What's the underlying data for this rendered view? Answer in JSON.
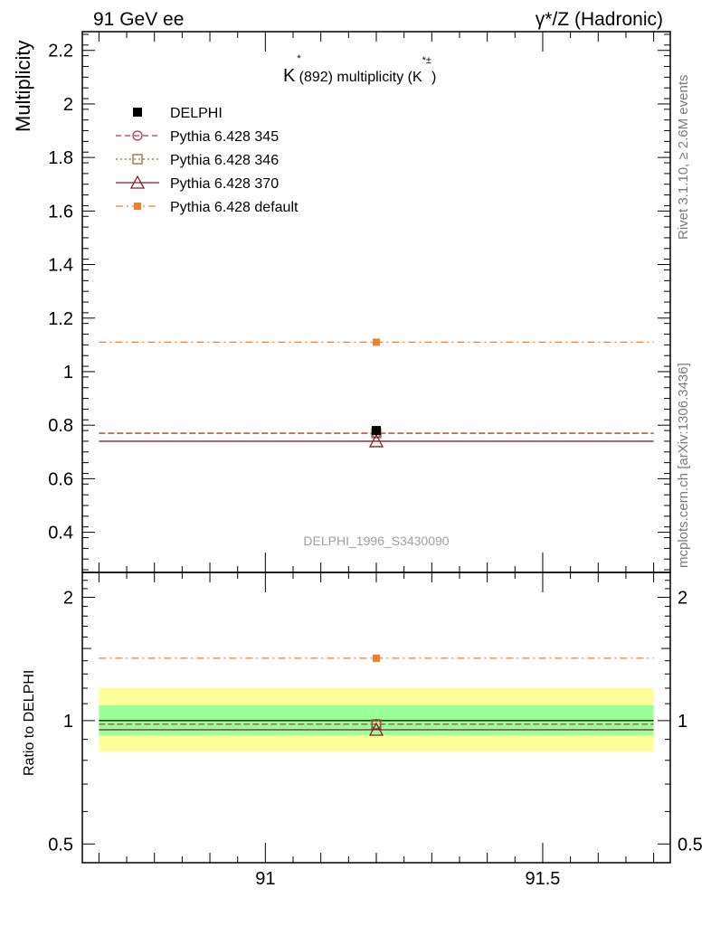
{
  "header": {
    "left": "91 GeV ee",
    "right": "γ*/Z (Hadronic)"
  },
  "side_labels": {
    "rivet": "Rivet 3.1.10, ≥ 2.6M events",
    "mcplots": "mcplots.cern.ch [arXiv:1306.3436]"
  },
  "watermark": "DELPHI_1996_S3430090",
  "chart_data": [
    {
      "type": "scatter",
      "title_main": "K",
      "title_sup": "*",
      "title_mid": "(892) multiplicity (K",
      "title_sup2": "*±",
      "title_end": ")",
      "ylabel": "Multiplicity",
      "xlim": [
        90.67,
        91.73
      ],
      "ylim": [
        0.25,
        2.27
      ],
      "y_ticks": [
        "0.4",
        "0.6",
        "0.8",
        "1",
        "1.2",
        "1.4",
        "1.6",
        "1.8",
        "2",
        "2.2"
      ],
      "y_tick_values": [
        0.4,
        0.6,
        0.8,
        1.0,
        1.2,
        1.4,
        1.6,
        1.8,
        2.0,
        2.2
      ],
      "x_range_hist": [
        90.7,
        91.7
      ],
      "x_point": 91.2,
      "series": [
        {
          "name": "DELPHI",
          "value": 0.78,
          "color": "#000000",
          "style": "data"
        },
        {
          "name": "Pythia 6.428 345",
          "value": 0.77,
          "color": "#b2334c",
          "style": "dashed",
          "marker": "circle"
        },
        {
          "name": "Pythia 6.428 346",
          "value": 0.77,
          "color": "#8a6d2a",
          "style": "dotted",
          "marker": "square"
        },
        {
          "name": "Pythia 6.428 370",
          "value": 0.74,
          "color": "#8b1a2b",
          "style": "solid",
          "marker": "triangle"
        },
        {
          "name": "Pythia 6.428 default",
          "value": 1.11,
          "color": "#f07f2a",
          "style": "dashdot",
          "marker": "filled-square"
        }
      ]
    },
    {
      "type": "scatter",
      "ylabel": "Ratio to DELPHI",
      "ylim": [
        0.45,
        2.3
      ],
      "log_y": true,
      "y_ticks": [
        "0.5",
        "1",
        "2"
      ],
      "y_tick_values": [
        0.5,
        1.0,
        2.0
      ],
      "x_ticks": [
        "91",
        "91.5"
      ],
      "x_tick_values": [
        91.0,
        91.5
      ],
      "bands": [
        {
          "name": "outer",
          "low": 0.84,
          "high": 1.2,
          "color": "#ffff99"
        },
        {
          "name": "inner",
          "low": 0.92,
          "high": 1.09,
          "color": "#99ff99"
        }
      ],
      "series": [
        {
          "name": "DELPHI",
          "value": 1.0,
          "color": "#000000",
          "style": "solid"
        },
        {
          "name": "Pythia 6.428 345",
          "value": 0.98,
          "color": "#b2334c",
          "style": "dashed",
          "marker": "circle"
        },
        {
          "name": "Pythia 6.428 346",
          "value": 0.98,
          "color": "#8a6d2a",
          "style": "dotted",
          "marker": "square"
        },
        {
          "name": "Pythia 6.428 370",
          "value": 0.95,
          "color": "#8b1a2b",
          "style": "solid",
          "marker": "triangle"
        },
        {
          "name": "Pythia 6.428 default",
          "value": 1.42,
          "color": "#f07f2a",
          "style": "dashdot",
          "marker": "filled-square"
        }
      ]
    }
  ]
}
